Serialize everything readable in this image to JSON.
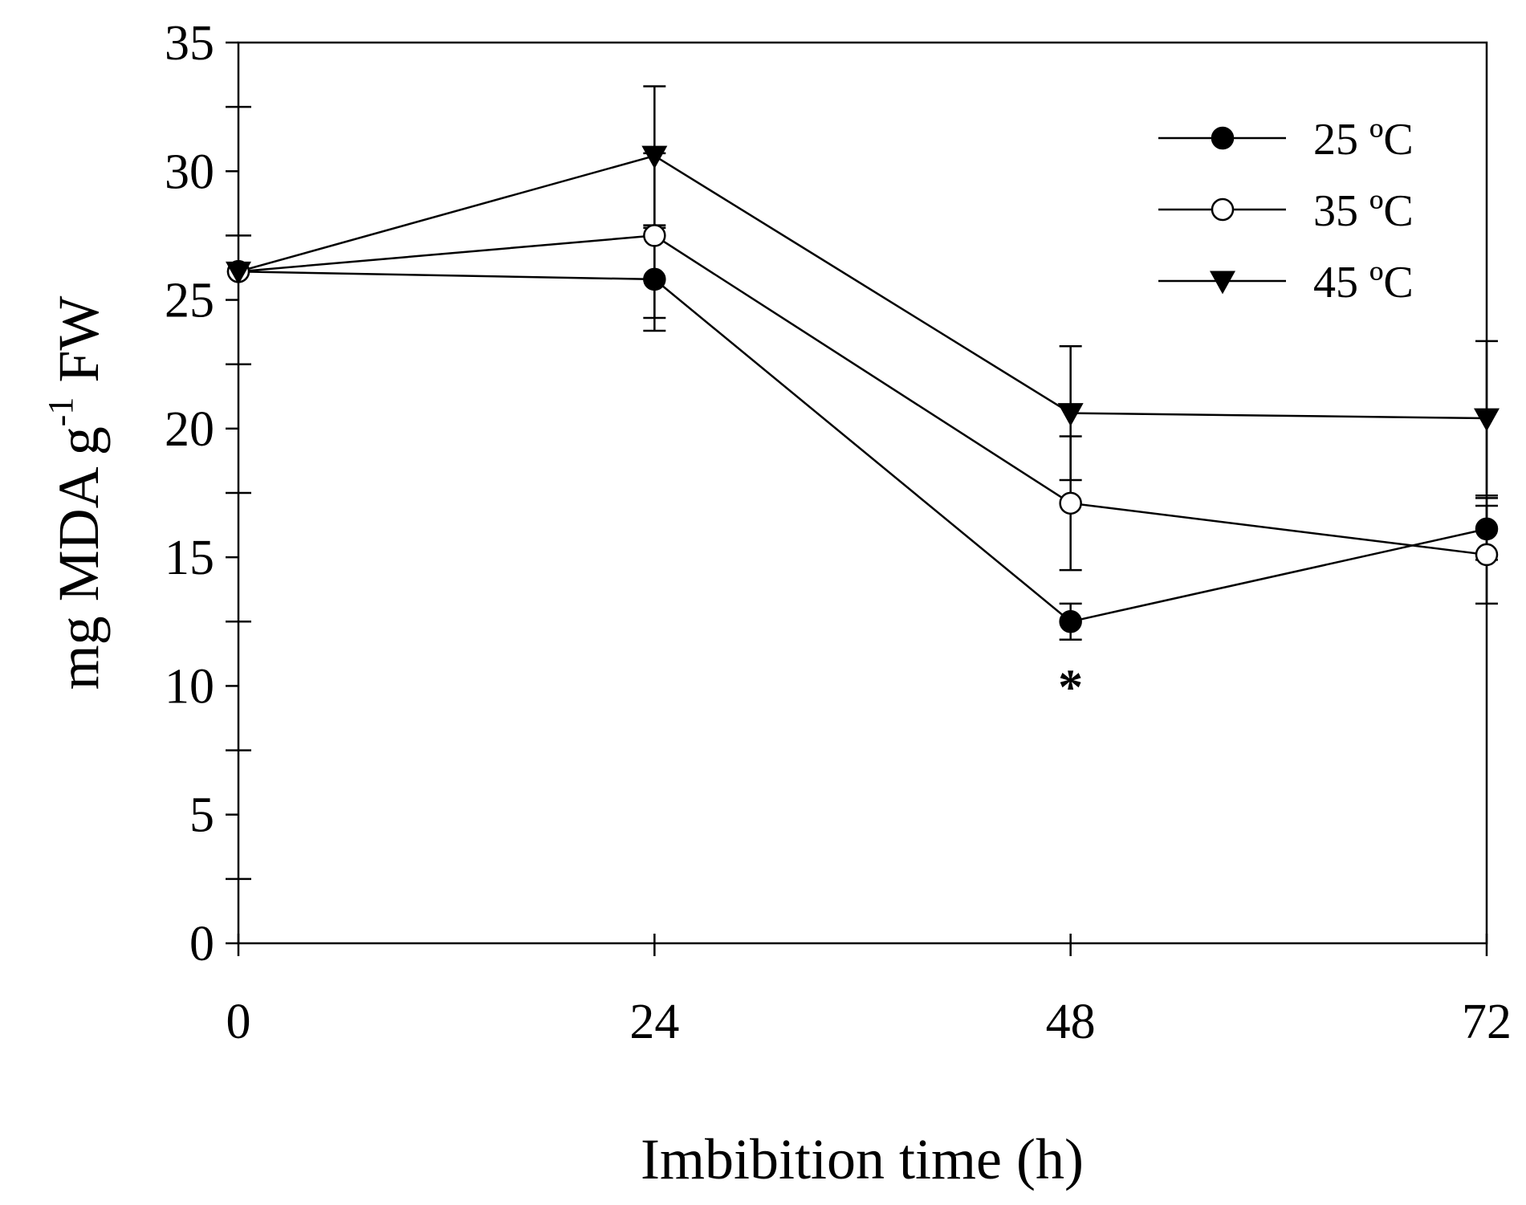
{
  "chart_data": {
    "type": "line",
    "title": "",
    "xlabel": "Imbibition time (h)",
    "ylabel": {
      "main": "mg MDA g",
      "superscript": "-1",
      "suffix": " FW"
    },
    "x": [
      0,
      24,
      48,
      72
    ],
    "x_ticks": [
      "0",
      "24",
      "48",
      "72"
    ],
    "xlim": [
      0,
      72
    ],
    "ylim": [
      0,
      35
    ],
    "y_ticks": [
      "0",
      "5",
      "10",
      "15",
      "20",
      "25",
      "30",
      "35"
    ],
    "y_tick_values": [
      0,
      5,
      10,
      15,
      20,
      25,
      30,
      35
    ],
    "grid": false,
    "legend_position": "top-right",
    "series": [
      {
        "name": "25 ºC",
        "marker": "filled-circle",
        "values": [
          26.1,
          25.8,
          12.5,
          16.1
        ],
        "error": [
          0,
          2.0,
          0.7,
          1.2
        ]
      },
      {
        "name": "35 ºC",
        "marker": "open-circle",
        "values": [
          26.1,
          27.5,
          17.1,
          15.1
        ],
        "error": [
          0,
          3.2,
          2.6,
          1.9
        ]
      },
      {
        "name": "45 ºC",
        "marker": "filled-triangle-down",
        "values": [
          26.1,
          30.6,
          20.6,
          20.4
        ],
        "error": [
          0,
          2.7,
          2.6,
          3.0
        ]
      }
    ],
    "annotations": [
      {
        "text": "*",
        "x": 48,
        "y": 10.5
      }
    ]
  }
}
